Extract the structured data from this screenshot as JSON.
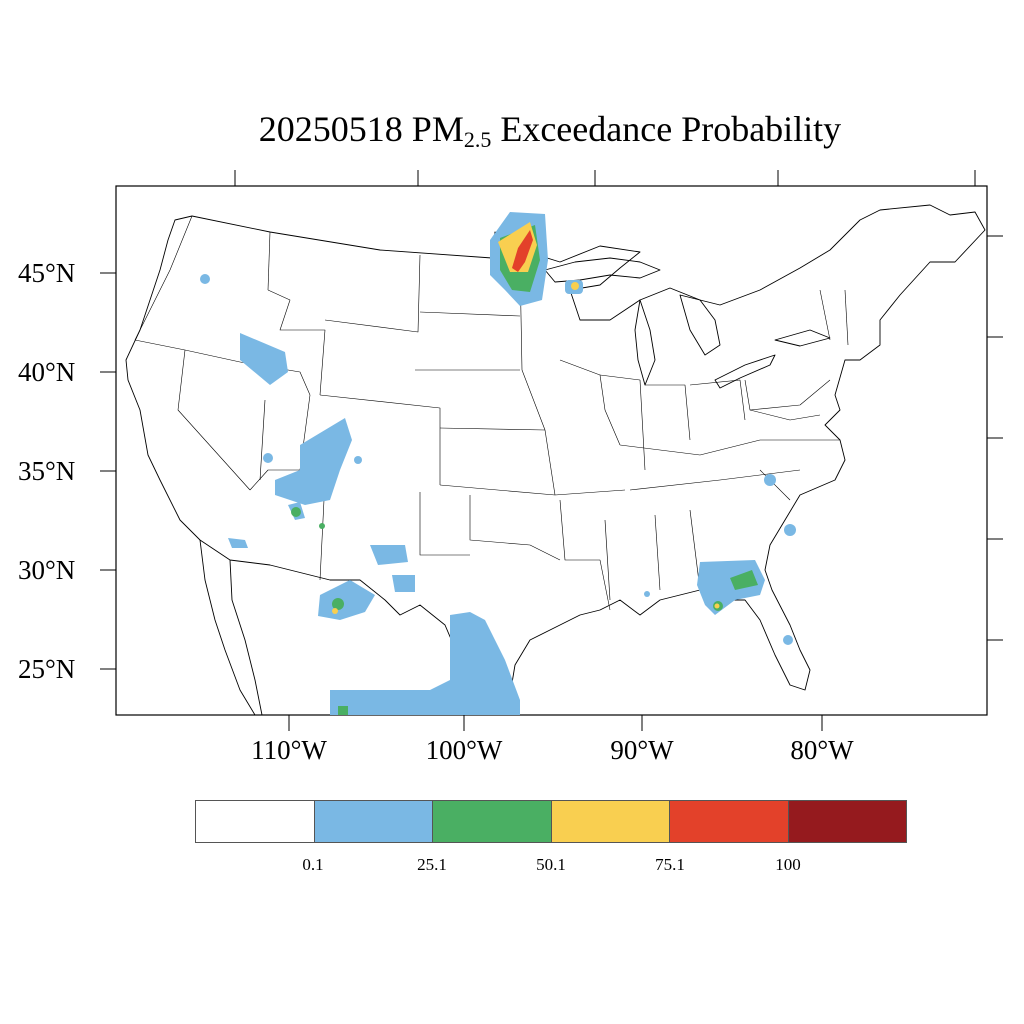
{
  "title": {
    "date": "20250518",
    "pm": "PM",
    "pm_sub": "2.5",
    "rest": "Exceedance Probability"
  },
  "lat_labels": [
    "45°N",
    "40°N",
    "35°N",
    "30°N",
    "25°N"
  ],
  "lon_labels": [
    "110°W",
    "100°W",
    "90°W",
    "80°W"
  ],
  "legend": {
    "colors": [
      "#ffffff",
      "#7ab8e4",
      "#4aaf63",
      "#f9cf50",
      "#e3412a",
      "#951a1e"
    ],
    "labels": [
      "0.1",
      "25.1",
      "50.1",
      "75.1",
      "100"
    ]
  }
}
